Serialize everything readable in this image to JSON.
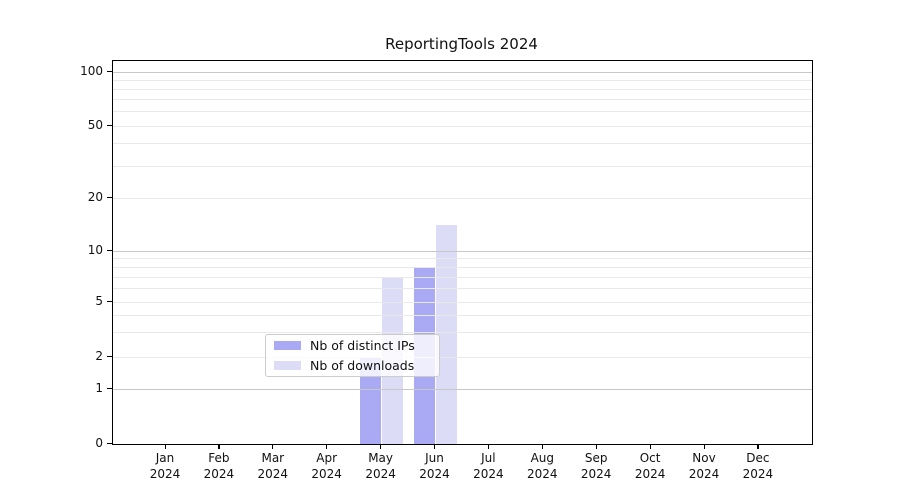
{
  "title": "ReportingTools 2024",
  "chart_data": {
    "type": "bar",
    "title": "ReportingTools 2024",
    "x_categories": [
      "Jan",
      "Feb",
      "Mar",
      "Apr",
      "May",
      "Jun",
      "Jul",
      "Aug",
      "Sep",
      "Oct",
      "Nov",
      "Dec"
    ],
    "x_year": "2024",
    "series": [
      {
        "name": "Nb of distinct IPs",
        "color": "#a9a9f4",
        "values": [
          0,
          0,
          0,
          0,
          2,
          8,
          0,
          0,
          0,
          0,
          0,
          0
        ]
      },
      {
        "name": "Nb of downloads",
        "color": "#dcdcf6",
        "values": [
          0,
          0,
          0,
          0,
          7,
          14,
          0,
          0,
          0,
          0,
          0,
          0
        ]
      }
    ],
    "yaxis": {
      "scale": "symlog",
      "ticks": [
        0,
        1,
        2,
        5,
        10,
        20,
        50,
        100
      ],
      "major_ticks": [
        1,
        10,
        100
      ]
    },
    "xlabel": "",
    "ylabel": "",
    "grid": {
      "horizontal": true,
      "vertical": false
    },
    "legend": {
      "position": "lower center, inside plot, semi-transparent"
    }
  }
}
